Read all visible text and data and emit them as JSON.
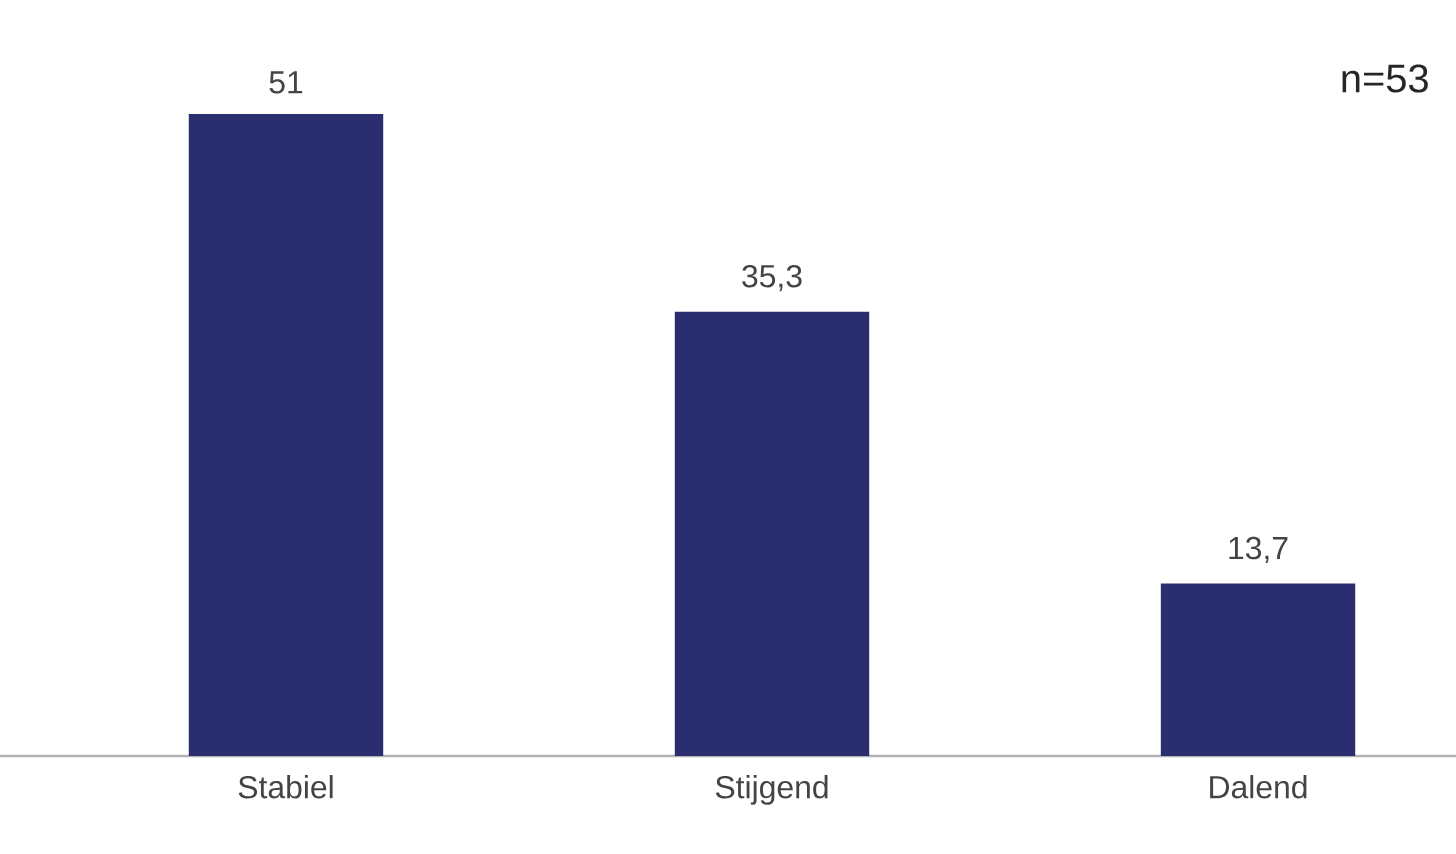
{
  "chart_data": {
    "type": "bar",
    "categories": [
      "Stabiel",
      "Stijgend",
      "Dalend"
    ],
    "values": [
      51,
      35.3,
      13.7
    ],
    "value_labels": [
      "51",
      "35,3",
      "13,7"
    ],
    "color": "#2a2d6e",
    "annotations": [
      "n=53"
    ]
  }
}
